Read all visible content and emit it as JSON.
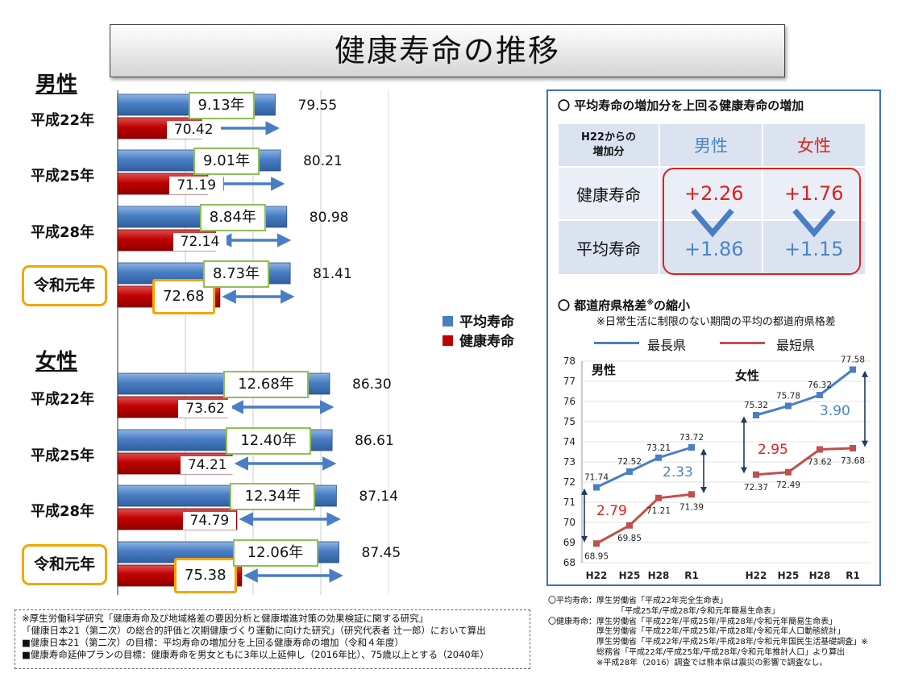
{
  "title": "健康寿命の推移",
  "male": {
    "heading": "男性",
    "rows": [
      {
        "label": "平成22年",
        "avg": 79.55,
        "avg_label": "79.55",
        "healthy": 70.42,
        "healthy_label": "70.42",
        "gap": "9.13年"
      },
      {
        "label": "平成25年",
        "avg": 80.21,
        "avg_label": "80.21",
        "healthy": 71.19,
        "healthy_label": "71.19",
        "gap": "9.01年"
      },
      {
        "label": "平成28年",
        "avg": 80.98,
        "avg_label": "80.98",
        "healthy": 72.14,
        "healthy_label": "72.14",
        "gap": "8.84年"
      },
      {
        "label": "令和元年",
        "avg": 81.41,
        "avg_label": "81.41",
        "healthy": 72.68,
        "healthy_label": "72.68",
        "gap": "8.73年",
        "highlight": true
      }
    ]
  },
  "female": {
    "heading": "女性",
    "rows": [
      {
        "label": "平成22年",
        "avg": 86.3,
        "avg_label": "86.30",
        "healthy": 73.62,
        "healthy_label": "73.62",
        "gap": "12.68年"
      },
      {
        "label": "平成25年",
        "avg": 86.61,
        "avg_label": "86.61",
        "healthy": 74.21,
        "healthy_label": "74.21",
        "gap": "12.40年"
      },
      {
        "label": "平成28年",
        "avg": 87.14,
        "avg_label": "87.14",
        "healthy": 74.79,
        "healthy_label": "74.79",
        "gap": "12.34年"
      },
      {
        "label": "令和元年",
        "avg": 87.45,
        "avg_label": "87.45",
        "healthy": 75.38,
        "healthy_label": "75.38",
        "gap": "12.06年",
        "highlight": true
      }
    ]
  },
  "legend": {
    "avg": "平均寿命",
    "healthy": "健康寿命",
    "avg_color": "#4a7ec4",
    "healthy_color": "#c00000"
  },
  "panel": {
    "heading1": "〇 平均寿命の増加分を上回る健康寿命の増加",
    "table": {
      "corner": "H22からの\n増加分",
      "col_male": "男性",
      "col_female": "女性",
      "row1": "健康寿命",
      "row2": "平均寿命",
      "healthy_male": "+2.26",
      "healthy_female": "+1.76",
      "avg_male": "+1.86",
      "avg_female": "+1.15"
    },
    "heading2": "〇 都道府県格差",
    "heading2_sup": "※",
    "heading2_tail": "の縮小",
    "note": "※日常生活に制限のない期間の平均の都道府県格差",
    "legend_longest": "最長県",
    "legend_shortest": "最短県",
    "male_label": "男性",
    "female_label": "女性",
    "male_gap_start": "2.79",
    "male_gap_end": "2.33",
    "female_gap_start": "2.95",
    "female_gap_end": "3.90"
  },
  "chart_data": [
    {
      "type": "bar",
      "categories": [
        "平成22年",
        "平成25年",
        "平成28年",
        "令和元年"
      ],
      "series": [
        {
          "name": "平均寿命",
          "values": [
            79.55,
            80.21,
            80.98,
            81.41
          ]
        },
        {
          "name": "健康寿命",
          "values": [
            70.42,
            71.19,
            72.14,
            72.68
          ]
        }
      ],
      "title": "男性"
    },
    {
      "type": "bar",
      "categories": [
        "平成22年",
        "平成25年",
        "平成28年",
        "令和元年"
      ],
      "series": [
        {
          "name": "平均寿命",
          "values": [
            86.3,
            86.61,
            87.14,
            87.45
          ]
        },
        {
          "name": "健康寿命",
          "values": [
            73.62,
            74.21,
            74.79,
            75.38
          ]
        }
      ],
      "title": "女性"
    },
    {
      "type": "line",
      "x": [
        "H22",
        "H25",
        "H28",
        "R1"
      ],
      "ylim": [
        68,
        78
      ],
      "yticks": [
        68,
        69,
        70,
        71,
        72,
        73,
        74,
        75,
        76,
        77,
        78
      ],
      "grid": true,
      "legend": "top",
      "groups": [
        {
          "name": "男性",
          "series": [
            {
              "name": "最長県",
              "color": "#4a7ec4",
              "values": [
                71.74,
                72.52,
                73.21,
                73.72
              ],
              "labels": [
                "71.74",
                "72.52",
                "73.21",
                "73.72"
              ]
            },
            {
              "name": "最短県",
              "color": "#c0504d",
              "values": [
                68.95,
                69.85,
                71.21,
                71.39
              ],
              "labels": [
                "68.95",
                "69.85",
                "71.21",
                "71.39"
              ]
            }
          ]
        },
        {
          "name": "女性",
          "series": [
            {
              "name": "最長県",
              "color": "#4a7ec4",
              "values": [
                75.32,
                75.78,
                76.32,
                77.58
              ],
              "labels": [
                "75.32",
                "75.78",
                "76.32",
                "77.58"
              ]
            },
            {
              "name": "最短県",
              "color": "#c0504d",
              "values": [
                72.37,
                72.49,
                73.62,
                73.68
              ],
              "labels": [
                "72.37",
                "72.49",
                "73.62",
                "73.68"
              ]
            }
          ]
        }
      ]
    }
  ],
  "footnotes": [
    "※厚生労働科学研究「健康寿命及び地域格差の要因分析と健康増進対策の効果検証に関する研究」",
    "「健康日本21（第二次）の総合的評価と次期健康づくり運動に向けた研究」（研究代表者 辻一郎）において算出",
    "■健康日本21（第二次）の目標：平均寿命の増加分を上回る健康寿命の増加（令和４年度）",
    "■健康寿命延伸プランの目標：健康寿命を男女ともに3年以上延伸し（2016年比）、75歳以上とする（2040年）"
  ],
  "sources": [
    "〇平均寿命：厚生労働省「平成22年完全生命表」",
    "　　　　　　　　　「平成25年/平成28年/令和元年簡易生命表」",
    "〇健康寿命：厚生労働省「平成22年/平成25年/平成28年/令和元年簡易生命表」",
    "　　　　　　厚生労働省「平成22年/平成25年/平成28年/令和元年人口動態統計」",
    "　　　　　　厚生労働省「平成22年/平成25年/平成28年/令和元年国民生活基礎調査」※",
    "　　　　　　総務省「平成22年/平成25年/平成28年/令和元年推計人口」より算出",
    "　　　　　　※平成28年（2016）調査では熊本県は震災の影響で調査なし。"
  ]
}
